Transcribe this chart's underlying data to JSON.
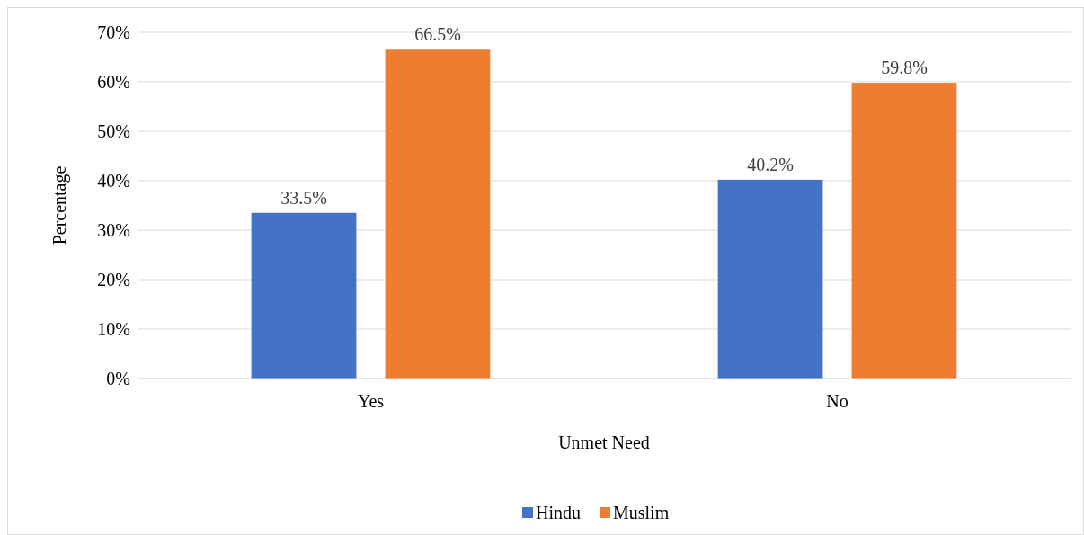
{
  "chart_data": {
    "type": "bar",
    "xlabel": "Unmet Need",
    "ylabel": "Percentage",
    "categories": [
      "Yes",
      "No"
    ],
    "series": [
      {
        "name": "Hindu",
        "color": "#4472c4",
        "values": [
          33.5,
          40.2
        ],
        "value_labels": [
          "33.5%",
          "40.2%"
        ]
      },
      {
        "name": "Muslim",
        "color": "#ed7d31",
        "values": [
          66.5,
          59.8
        ],
        "value_labels": [
          "66.5%",
          "59.8%"
        ]
      }
    ],
    "ylim": [
      0,
      70
    ],
    "yticks": [
      {
        "value": 0,
        "label": "0%"
      },
      {
        "value": 10,
        "label": "10%"
      },
      {
        "value": 20,
        "label": "20%"
      },
      {
        "value": 30,
        "label": "30%"
      },
      {
        "value": 40,
        "label": "40%"
      },
      {
        "value": 50,
        "label": "50%"
      },
      {
        "value": 60,
        "label": "60%"
      },
      {
        "value": 70,
        "label": "70%"
      }
    ],
    "grid": "y",
    "legend": "bottom"
  }
}
